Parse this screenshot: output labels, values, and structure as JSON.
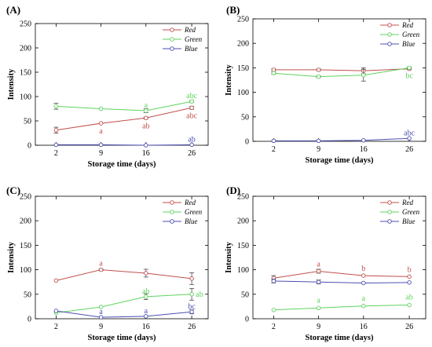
{
  "colors": {
    "Red": "#c0504d",
    "Green": "#5fd35f",
    "Blue": "#4b4fb0"
  },
  "chart_data": [
    {
      "type": "line",
      "panel_label": "(A)",
      "xlabel": "Storage time (days)",
      "ylabel": "Intensity",
      "categories": [
        "2",
        "9",
        "16",
        "26"
      ],
      "yticks": [
        "0",
        "50",
        "100",
        "150",
        "200",
        "250"
      ],
      "ylim": [
        0,
        250
      ],
      "grid": false,
      "legend": "top-right",
      "series": [
        {
          "name": "Red",
          "values": [
            31,
            45,
            56,
            77
          ],
          "errors": [
            6,
            0,
            2,
            3
          ],
          "labels": [
            "",
            "a",
            "ab",
            "abc"
          ]
        },
        {
          "name": "Green",
          "values": [
            80,
            75,
            71,
            90
          ],
          "errors": [
            6,
            0,
            4,
            2
          ],
          "labels": [
            "",
            "",
            "a",
            "abc"
          ]
        },
        {
          "name": "Blue",
          "values": [
            1,
            1,
            0,
            1
          ],
          "errors": [
            0,
            0,
            0,
            0
          ],
          "labels": [
            "",
            "",
            "",
            "ab"
          ]
        }
      ]
    },
    {
      "type": "line",
      "panel_label": "(B)",
      "xlabel": "Storage time (days)",
      "ylabel": "Intensity",
      "categories": [
        "2",
        "9",
        "16",
        "26"
      ],
      "yticks": [
        "0",
        "50",
        "100",
        "150",
        "200",
        "250"
      ],
      "ylim": [
        0,
        250
      ],
      "grid": false,
      "legend": "top-right",
      "series": [
        {
          "name": "Red",
          "values": [
            146,
            146,
            144,
            148
          ],
          "errors": [
            2,
            2,
            6,
            2
          ],
          "labels": [
            "",
            "",
            "",
            ""
          ]
        },
        {
          "name": "Green",
          "values": [
            139,
            132,
            135,
            150
          ],
          "errors": [
            2,
            2,
            12,
            2
          ],
          "labels": [
            "",
            "",
            "",
            "bc"
          ]
        },
        {
          "name": "Blue",
          "values": [
            1,
            1,
            2,
            6
          ],
          "errors": [
            0,
            0,
            0,
            0
          ],
          "labels": [
            "",
            "",
            "",
            "abc"
          ]
        }
      ]
    },
    {
      "type": "line",
      "panel_label": "(C)",
      "xlabel": "Storage time (days)",
      "ylabel": "Intensity",
      "categories": [
        "2",
        "9",
        "16",
        "26"
      ],
      "yticks": [
        "0",
        "50",
        "100",
        "150",
        "200",
        "250"
      ],
      "ylim": [
        0,
        250
      ],
      "grid": false,
      "legend": "top-right",
      "series": [
        {
          "name": "Red",
          "values": [
            78,
            100,
            93,
            82
          ],
          "errors": [
            0,
            2,
            8,
            12
          ],
          "labels": [
            "",
            "a",
            "",
            ""
          ]
        },
        {
          "name": "Green",
          "values": [
            12,
            24,
            45,
            50
          ],
          "errors": [
            0,
            0,
            6,
            12
          ],
          "labels": [
            "",
            "",
            "ab",
            "ab"
          ]
        },
        {
          "name": "Blue",
          "values": [
            16,
            3,
            5,
            14
          ],
          "errors": [
            0,
            0,
            0,
            4
          ],
          "labels": [
            "",
            "a",
            "a",
            "bc"
          ]
        }
      ]
    },
    {
      "type": "line",
      "panel_label": "(D)",
      "xlabel": "Storage time (days)",
      "ylabel": "Intensity",
      "categories": [
        "2",
        "9",
        "16",
        "26"
      ],
      "yticks": [
        "0",
        "50",
        "100",
        "150",
        "200",
        "250"
      ],
      "ylim": [
        0,
        250
      ],
      "grid": false,
      "legend": "top-right",
      "series": [
        {
          "name": "Red",
          "values": [
            83,
            97,
            88,
            86
          ],
          "errors": [
            5,
            4,
            0,
            0
          ],
          "labels": [
            "",
            "a",
            "b",
            "b"
          ]
        },
        {
          "name": "Green",
          "values": [
            18,
            22,
            26,
            28
          ],
          "errors": [
            0,
            0,
            0,
            0
          ],
          "labels": [
            "",
            "a",
            "a",
            "ab"
          ]
        },
        {
          "name": "Blue",
          "values": [
            77,
            75,
            73,
            74
          ],
          "errors": [
            4,
            4,
            0,
            0
          ],
          "labels": [
            "",
            "",
            "",
            ""
          ]
        }
      ]
    }
  ]
}
